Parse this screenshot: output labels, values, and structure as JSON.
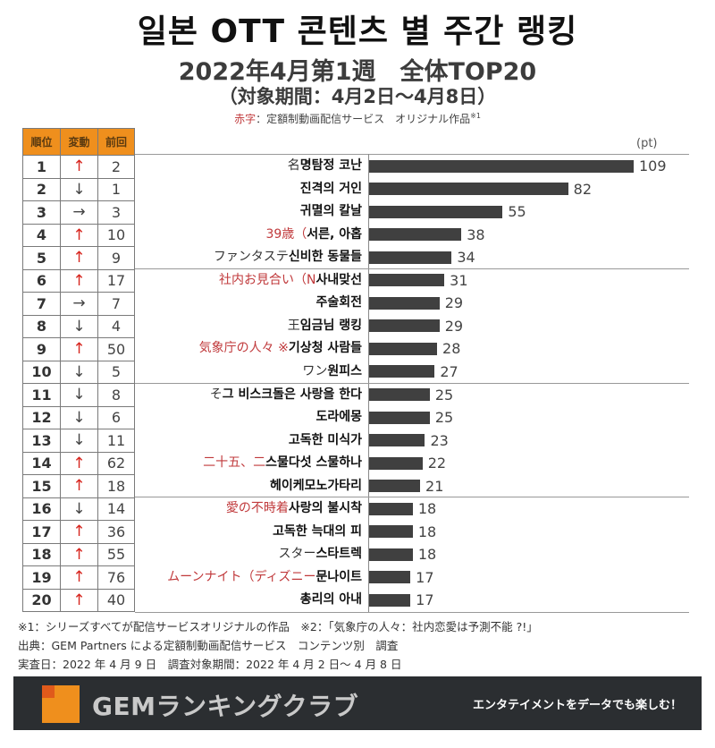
{
  "header": {
    "title": "일본 OTT 콘텐츠 별 주간 랭킹",
    "subtitle": "2022年4月第1週　全体TOP20",
    "period": "（対象期間：4月2日〜4月8日）",
    "note_red": "赤字",
    "note_rest": "：定額制動画配信サービス　オリジナル作品",
    "note_sup": "※1"
  },
  "table": {
    "headers": [
      "順位",
      "変動",
      "前回"
    ]
  },
  "colors": {
    "header_orange": "#ef8f1d",
    "bar": "#404040",
    "up_arrow": "#d7261f",
    "original_red": "#c0393b",
    "banner_bg": "#2b2e31"
  },
  "chart_data": {
    "type": "bar",
    "orientation": "horizontal",
    "unit_label": "(pt)",
    "xlim": [
      0,
      109
    ],
    "categories": [
      "명탐정 코난",
      "진격의 거인",
      "귀멸의 칼날",
      "서른, 아홉",
      "신비한 동물들",
      "사내맞선",
      "주술회전",
      "임금님 랭킹",
      "기상청 사람들",
      "원피스",
      "그 비스크돌은 사랑을 한다",
      "도라에몽",
      "고독한 미식가",
      "스물다섯 스물하나",
      "헤이케모노가타리",
      "사랑의 불시착",
      "고독한 늑대의 피",
      "스타트렉",
      "문나이트",
      "총리의 아내"
    ],
    "values": [
      109,
      82,
      55,
      38,
      34,
      31,
      29,
      29,
      28,
      27,
      25,
      25,
      23,
      22,
      21,
      18,
      18,
      18,
      17,
      17
    ],
    "rows": [
      {
        "rank": "1",
        "change": "up",
        "arrow": "↑",
        "prev": "2",
        "jp": "名",
        "jp_red": false,
        "ko": "명탐정 코난",
        "value": "109"
      },
      {
        "rank": "2",
        "change": "down",
        "arrow": "↓",
        "prev": "1",
        "jp": "",
        "jp_red": false,
        "ko": "진격의 거인",
        "value": "82"
      },
      {
        "rank": "3",
        "change": "same",
        "arrow": "→",
        "prev": "3",
        "jp": "",
        "jp_red": false,
        "ko": "귀멸의 칼날",
        "value": "55"
      },
      {
        "rank": "4",
        "change": "up",
        "arrow": "↑",
        "prev": "10",
        "jp": "39歳（",
        "jp_red": true,
        "ko": "서른, 아홉",
        "value": "38"
      },
      {
        "rank": "5",
        "change": "up",
        "arrow": "↑",
        "prev": "9",
        "jp": "ファンタステ",
        "jp_red": false,
        "ko": "신비한 동물들",
        "value": "34"
      },
      {
        "rank": "6",
        "change": "up",
        "arrow": "↑",
        "prev": "17",
        "jp": "社内お見合い（N",
        "jp_red": true,
        "ko": "사내맞선",
        "value": "31"
      },
      {
        "rank": "7",
        "change": "same",
        "arrow": "→",
        "prev": "7",
        "jp": "",
        "jp_red": false,
        "ko": "주술회전",
        "value": "29"
      },
      {
        "rank": "8",
        "change": "down",
        "arrow": "↓",
        "prev": "4",
        "jp": "王",
        "jp_red": false,
        "ko": "임금님 랭킹",
        "value": "29"
      },
      {
        "rank": "9",
        "change": "up",
        "arrow": "↑",
        "prev": "50",
        "jp": "気象庁の人々 ※",
        "jp_red": true,
        "ko": "기상청 사람들",
        "value": "28"
      },
      {
        "rank": "10",
        "change": "down",
        "arrow": "↓",
        "prev": "5",
        "jp": "ワン",
        "jp_red": false,
        "ko": "원피스",
        "value": "27"
      },
      {
        "rank": "11",
        "change": "down",
        "arrow": "↓",
        "prev": "8",
        "jp": "そ",
        "jp_red": false,
        "ko": "그 비스크돌은 사랑을 한다",
        "value": "25"
      },
      {
        "rank": "12",
        "change": "down",
        "arrow": "↓",
        "prev": "6",
        "jp": "",
        "jp_red": false,
        "ko": "도라에몽",
        "value": "25"
      },
      {
        "rank": "13",
        "change": "down",
        "arrow": "↓",
        "prev": "11",
        "jp": "",
        "jp_red": false,
        "ko": "고독한 미식가",
        "value": "23"
      },
      {
        "rank": "14",
        "change": "up",
        "arrow": "↑",
        "prev": "62",
        "jp": "二十五、二",
        "jp_red": true,
        "ko": "스물다섯 스물하나",
        "value": "22"
      },
      {
        "rank": "15",
        "change": "up",
        "arrow": "↑",
        "prev": "18",
        "jp": "",
        "jp_red": false,
        "ko": "헤이케모노가타리",
        "value": "21"
      },
      {
        "rank": "16",
        "change": "down",
        "arrow": "↓",
        "prev": "14",
        "jp": "愛の不時着",
        "jp_red": true,
        "ko": "사랑의 불시착",
        "value": "18"
      },
      {
        "rank": "17",
        "change": "up",
        "arrow": "↑",
        "prev": "36",
        "jp": "",
        "jp_red": false,
        "ko": "고독한 늑대의 피",
        "value": "18"
      },
      {
        "rank": "18",
        "change": "up",
        "arrow": "↑",
        "prev": "55",
        "jp": "スター",
        "jp_red": false,
        "ko": "스타트렉",
        "value": "18"
      },
      {
        "rank": "19",
        "change": "up",
        "arrow": "↑",
        "prev": "76",
        "jp": "ムーンナイト（ディズニー",
        "jp_red": true,
        "ko": "문나이트",
        "value": "17"
      },
      {
        "rank": "20",
        "change": "up",
        "arrow": "↑",
        "prev": "40",
        "jp": "",
        "jp_red": false,
        "ko": "총리의 아내",
        "value": "17"
      }
    ]
  },
  "footnotes": {
    "line1": "※1：シリーズすべてが配信サービスオリジナルの作品　※2：「気象庁の人々：社内恋愛は予測不能 ?!」",
    "line2": "出典：GEM Partners による定額制動画配信サービス　コンテンツ別　調査",
    "line3": "実査日：2022 年 4 月 9 日　調査対象期間：2022 年 4 月 2 日〜 4 月 8 日"
  },
  "banner": {
    "brand": "GEMランキングクラブ",
    "tagline": "エンタテイメントをデータでも楽しむ！"
  }
}
